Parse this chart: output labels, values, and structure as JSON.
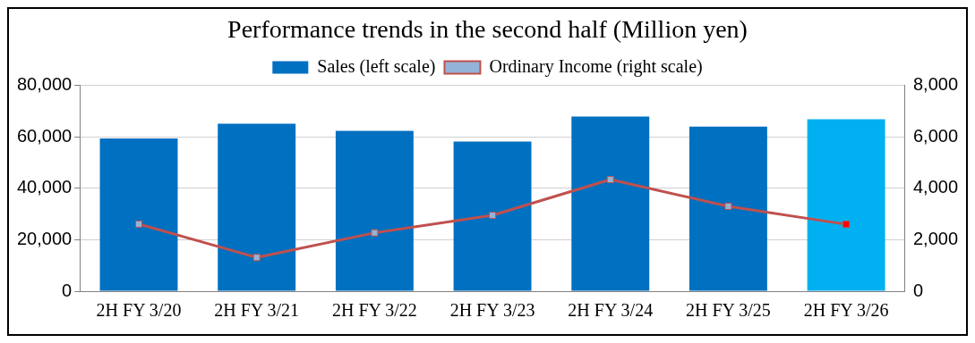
{
  "chart_data": {
    "type": "bar",
    "title": "Performance trends in the second half (Million yen)",
    "categories": [
      "2H FY 3/20",
      "2H FY 3/21",
      "2H FY 3/22",
      "2H FY 3/23",
      "2H FY 3/24",
      "2H FY 3/25",
      "2H FY 3/26"
    ],
    "series": [
      {
        "name": "Sales (left scale)",
        "color": "#0070c0",
        "colors": [
          "#0070c0",
          "#0070c0",
          "#0070c0",
          "#0070c0",
          "#0070c0",
          "#0070c0",
          "#00b0f0"
        ],
        "values": [
          59400,
          65100,
          62300,
          58200,
          67900,
          64000,
          66800
        ]
      },
      {
        "name": "Ordinary Income (right scale)",
        "type": "line",
        "axis": "y2",
        "color": "#c0504d",
        "colors": [
          "#95b3d7",
          "#95b3d7",
          "#95b3d7",
          "#95b3d7",
          "#95b3d7",
          "#95b3d7",
          "#ff0000"
        ],
        "marker": "square",
        "values": [
          2610,
          1310,
          2270,
          2950,
          4340,
          3300,
          2600
        ]
      }
    ],
    "ylim": [
      0,
      80000
    ],
    "yticks": [
      0,
      {
        "value": 20000,
        "label": "20,000"
      },
      {
        "value": 40000,
        "label": "40,000"
      },
      {
        "value": 60000,
        "label": "60,000"
      },
      {
        "value": 80000,
        "label": "80,000"
      }
    ],
    "y2lim": [
      0,
      8000
    ],
    "y2ticks": [
      0,
      {
        "value": 2000,
        "label": "2,000"
      },
      {
        "value": 4000,
        "label": "4,000"
      },
      {
        "value": 6000,
        "label": "6,000"
      },
      {
        "value": 8000,
        "label": "8,000"
      }
    ],
    "grid": "y",
    "legend": "top"
  }
}
